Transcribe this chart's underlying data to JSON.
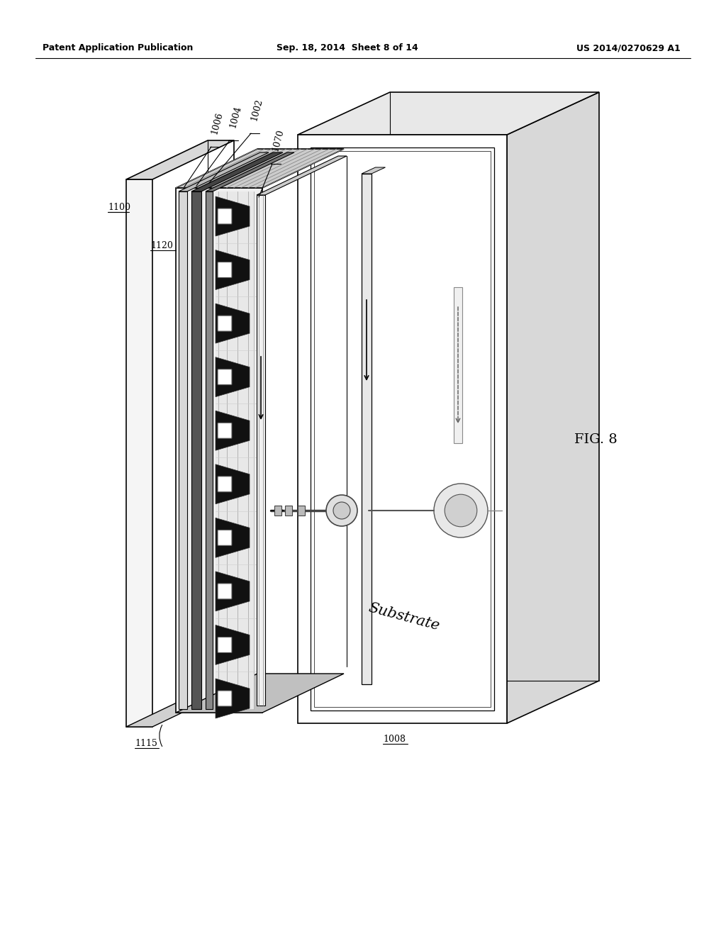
{
  "header_left": "Patent Application Publication",
  "header_middle": "Sep. 18, 2014  Sheet 8 of 14",
  "header_right": "US 2014/0270629 A1",
  "fig_label": "FIG. 8",
  "substrate_label": "Substrate",
  "background_color": "#ffffff"
}
